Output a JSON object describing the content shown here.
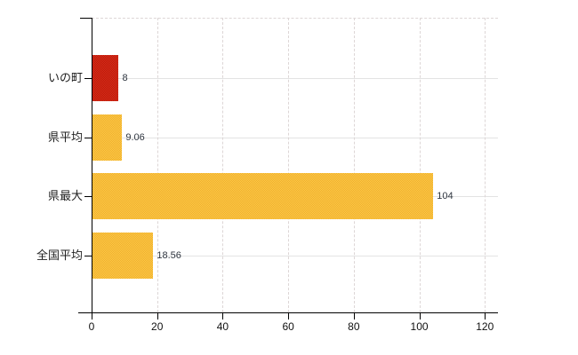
{
  "chart_data": {
    "type": "bar",
    "orientation": "horizontal",
    "title": "",
    "xlabel": "",
    "ylabel": "",
    "categories": [
      "いの町",
      "県平均",
      "県最大",
      "全国平均"
    ],
    "values": [
      8,
      9.06,
      104,
      18.56
    ],
    "value_labels": [
      "8",
      "9.06",
      "104",
      "18.56"
    ],
    "bar_colors": [
      {
        "fill": "#d92c1b",
        "fill_alt": "#b91a08"
      },
      {
        "fill": "#fccd47",
        "fill_alt": "#f0ab2d"
      },
      {
        "fill": "#fccd47",
        "fill_alt": "#f0ab2d"
      },
      {
        "fill": "#fccd47",
        "fill_alt": "#f0ab2d"
      }
    ],
    "xlim": [
      0,
      124
    ],
    "xticks": [
      "0",
      "20",
      "40",
      "60",
      "80",
      "100",
      "120"
    ],
    "grid": "on",
    "legend": "none",
    "background_color": "#ffffff",
    "axis_color": "#000000",
    "vertical_gridline_color": "#ddd6d6",
    "horizontal_gridline_color": "#e3e3e3",
    "category_label_color": "#1f1f1f",
    "value_label_color": "#2f3640",
    "tick_label_color": "#111111"
  }
}
